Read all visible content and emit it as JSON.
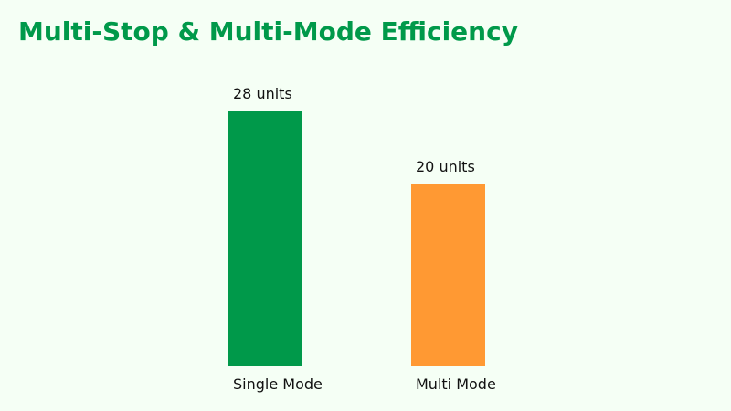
{
  "title": "Multi-Stop & Multi-Mode Efficiency",
  "colors": {
    "background": "#f5fff5",
    "title": "#00994a",
    "text": "#111111"
  },
  "chart_data": {
    "type": "bar",
    "categories": [
      "Single Mode",
      "Multi Mode"
    ],
    "values": [
      28,
      20
    ],
    "data_labels": [
      "28 units",
      "20 units"
    ],
    "bar_colors": [
      "#00994a",
      "#ff9933"
    ],
    "unit": "units",
    "ylim": [
      0,
      28
    ],
    "grid": false,
    "legend": "none"
  }
}
